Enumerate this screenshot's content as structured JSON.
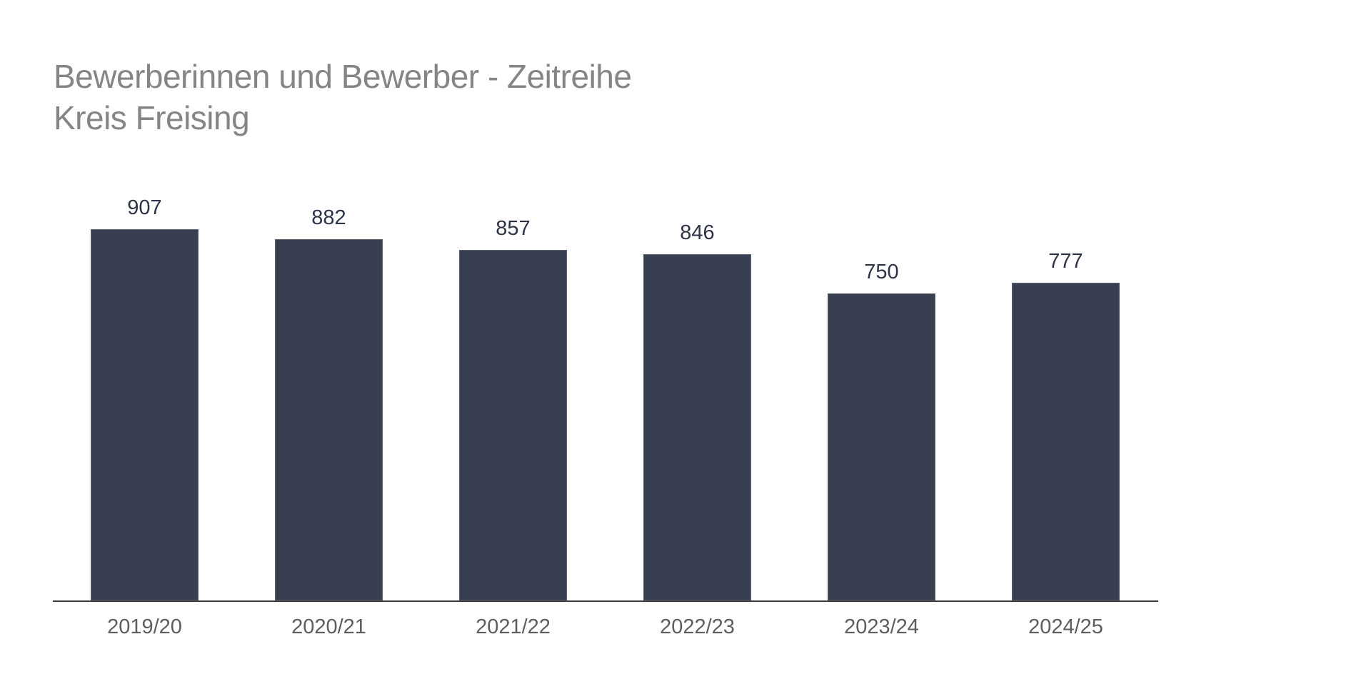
{
  "title": {
    "line1": "Bewerberinnen und Bewerber - Zeitreihe",
    "line2": "Kreis Freising"
  },
  "colors": {
    "bar": "#373f51",
    "title": "#858585",
    "value_label": "#2d3446",
    "tick_label": "#5e5e5e",
    "axis": "#3a3a3a"
  },
  "chart_data": {
    "type": "bar",
    "title": "Bewerberinnen und Bewerber - Zeitreihe",
    "subtitle": "Kreis Freising",
    "categories": [
      "2019/20",
      "2020/21",
      "2021/22",
      "2022/23",
      "2023/24",
      "2024/25"
    ],
    "values": [
      907,
      882,
      857,
      846,
      750,
      777
    ],
    "xlabel": "",
    "ylabel": "",
    "ylim": [
      0,
      907
    ],
    "grid": false,
    "legend": null,
    "data_labels": true
  }
}
